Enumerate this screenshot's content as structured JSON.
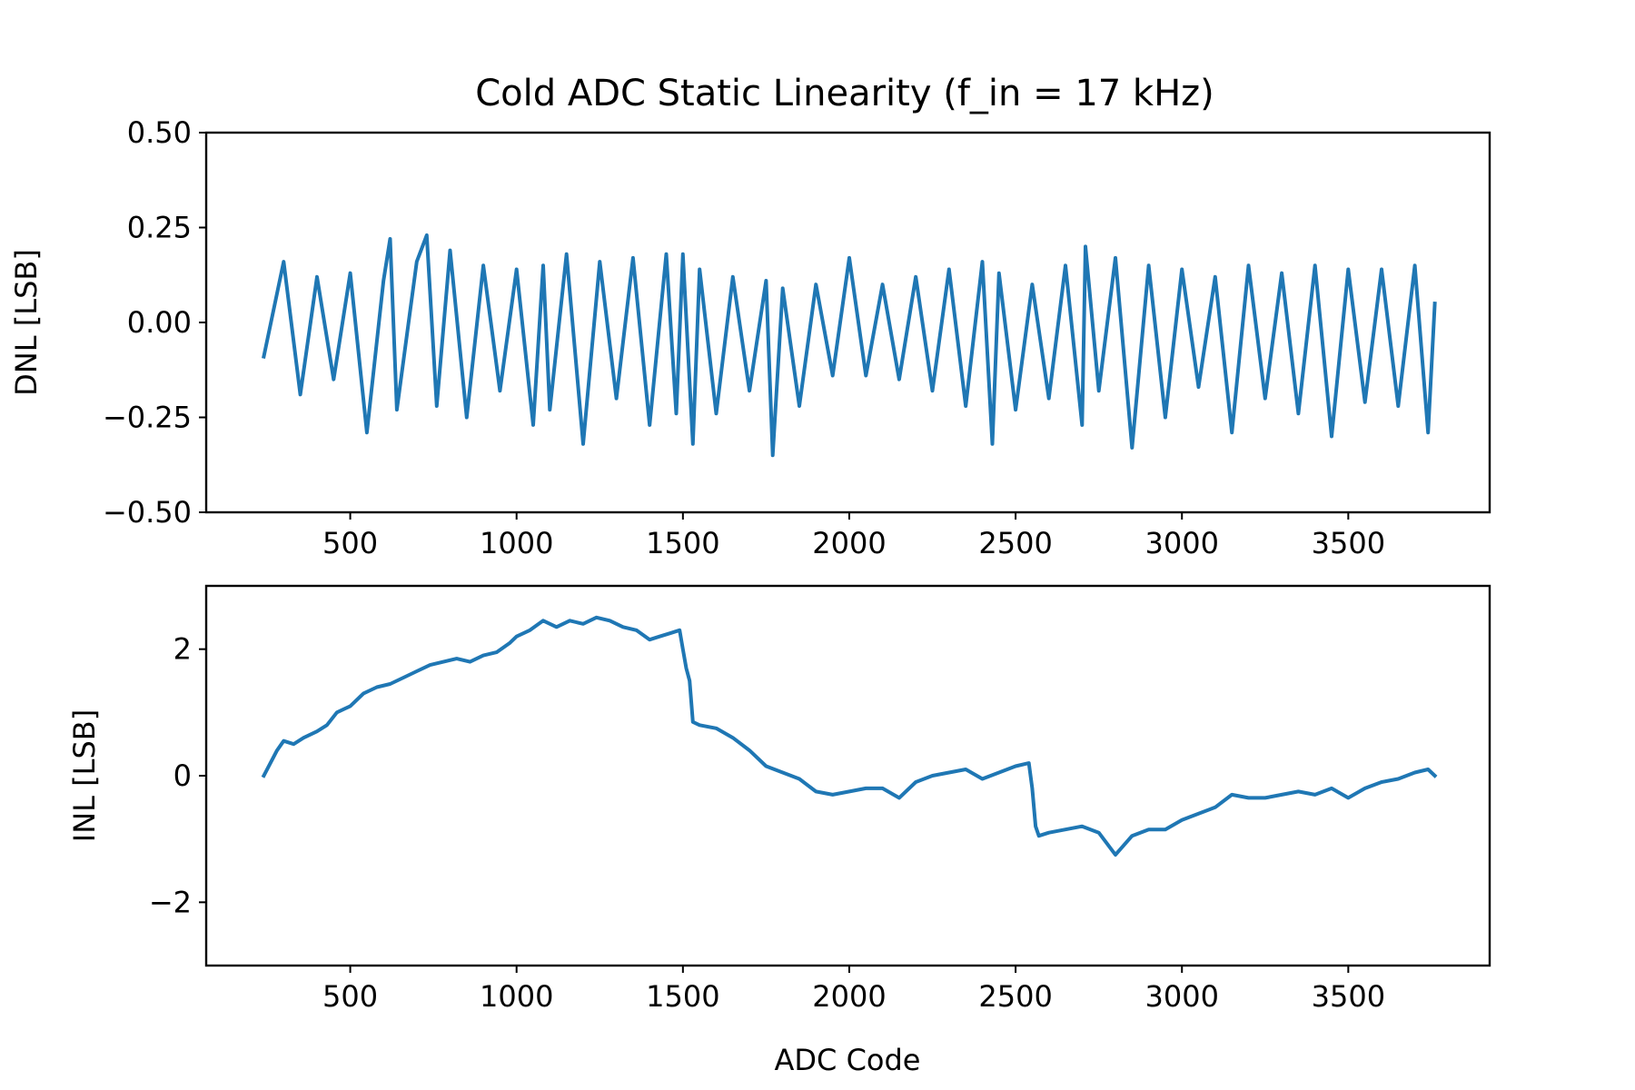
{
  "chart_data": {
    "title": "Cold ADC Static Linearity (f_in = 17 kHz)",
    "series_color": "#1f77b4",
    "subplots": [
      {
        "id": "dnl",
        "type": "line",
        "ylabel": "DNL [LSB]",
        "xlabel": "",
        "xlim": [
          67,
          3925
        ],
        "ylim": [
          -0.5,
          0.5
        ],
        "xticks": [
          500,
          1000,
          1500,
          2000,
          2500,
          3000,
          3500
        ],
        "xtick_labels": [
          "500",
          "1000",
          "1500",
          "2000",
          "2500",
          "3000",
          "3500"
        ],
        "yticks": [
          -0.5,
          -0.25,
          0.0,
          0.25,
          0.5
        ],
        "ytick_labels": [
          "−0.50",
          "−0.25",
          "0.00",
          "0.25",
          "0.50"
        ],
        "series": [
          {
            "x": [
              240,
              300,
              350,
              400,
              450,
              500,
              550,
              600,
              620,
              640,
              700,
              730,
              760,
              800,
              850,
              900,
              950,
              1000,
              1050,
              1080,
              1100,
              1150,
              1200,
              1250,
              1300,
              1350,
              1400,
              1450,
              1480,
              1500,
              1530,
              1550,
              1600,
              1650,
              1700,
              1750,
              1770,
              1800,
              1850,
              1900,
              1950,
              2000,
              2050,
              2100,
              2150,
              2200,
              2250,
              2300,
              2350,
              2400,
              2430,
              2450,
              2500,
              2550,
              2600,
              2650,
              2700,
              2710,
              2750,
              2800,
              2850,
              2900,
              2950,
              3000,
              3050,
              3100,
              3150,
              3200,
              3250,
              3300,
              3350,
              3400,
              3450,
              3500,
              3550,
              3600,
              3650,
              3700,
              3740,
              3760
            ],
            "y": [
              -0.09,
              0.16,
              -0.19,
              0.12,
              -0.15,
              0.13,
              -0.29,
              0.11,
              0.22,
              -0.23,
              0.16,
              0.23,
              -0.22,
              0.19,
              -0.25,
              0.15,
              -0.18,
              0.14,
              -0.27,
              0.15,
              -0.23,
              0.18,
              -0.32,
              0.16,
              -0.2,
              0.17,
              -0.27,
              0.18,
              -0.24,
              0.18,
              -0.32,
              0.14,
              -0.24,
              0.12,
              -0.18,
              0.11,
              -0.35,
              0.09,
              -0.22,
              0.1,
              -0.14,
              0.17,
              -0.14,
              0.1,
              -0.15,
              0.12,
              -0.18,
              0.14,
              -0.22,
              0.16,
              -0.32,
              0.13,
              -0.23,
              0.1,
              -0.2,
              0.15,
              -0.27,
              0.2,
              -0.18,
              0.17,
              -0.33,
              0.15,
              -0.25,
              0.14,
              -0.17,
              0.12,
              -0.29,
              0.15,
              -0.2,
              0.13,
              -0.24,
              0.15,
              -0.3,
              0.14,
              -0.21,
              0.14,
              -0.22,
              0.15,
              -0.29,
              0.05
            ]
          }
        ]
      },
      {
        "id": "inl",
        "type": "line",
        "ylabel": "INL [LSB]",
        "xlabel": "ADC Code",
        "xlim": [
          67,
          3925
        ],
        "ylim": [
          -3,
          3
        ],
        "xticks": [
          500,
          1000,
          1500,
          2000,
          2500,
          3000,
          3500
        ],
        "xtick_labels": [
          "500",
          "1000",
          "1500",
          "2000",
          "2500",
          "3000",
          "3500"
        ],
        "yticks": [
          -2,
          0,
          2
        ],
        "ytick_labels": [
          "−2",
          "0",
          "2"
        ],
        "series": [
          {
            "x": [
              240,
              260,
              280,
              300,
              330,
              360,
              400,
              430,
              460,
              500,
              540,
              580,
              620,
              660,
              700,
              740,
              780,
              820,
              860,
              900,
              940,
              980,
              1000,
              1040,
              1080,
              1120,
              1160,
              1200,
              1240,
              1280,
              1320,
              1360,
              1400,
              1430,
              1460,
              1490,
              1500,
              1510,
              1520,
              1530,
              1550,
              1600,
              1650,
              1700,
              1750,
              1800,
              1850,
              1900,
              1950,
              2000,
              2050,
              2100,
              2150,
              2200,
              2250,
              2300,
              2350,
              2400,
              2450,
              2500,
              2540,
              2550,
              2560,
              2570,
              2600,
              2650,
              2700,
              2750,
              2800,
              2850,
              2900,
              2950,
              3000,
              3050,
              3100,
              3150,
              3200,
              3250,
              3300,
              3350,
              3400,
              3450,
              3500,
              3550,
              3600,
              3650,
              3700,
              3740,
              3760
            ],
            "y": [
              0.0,
              0.2,
              0.4,
              0.55,
              0.5,
              0.6,
              0.7,
              0.8,
              1.0,
              1.1,
              1.3,
              1.4,
              1.45,
              1.55,
              1.65,
              1.75,
              1.8,
              1.85,
              1.8,
              1.9,
              1.95,
              2.1,
              2.2,
              2.3,
              2.45,
              2.35,
              2.45,
              2.4,
              2.5,
              2.45,
              2.35,
              2.3,
              2.15,
              2.2,
              2.25,
              2.3,
              2.0,
              1.7,
              1.5,
              0.85,
              0.8,
              0.75,
              0.6,
              0.4,
              0.15,
              0.05,
              -0.05,
              -0.25,
              -0.3,
              -0.25,
              -0.2,
              -0.2,
              -0.35,
              -0.1,
              0.0,
              0.05,
              0.1,
              -0.05,
              0.05,
              0.15,
              0.2,
              -0.2,
              -0.8,
              -0.95,
              -0.9,
              -0.85,
              -0.8,
              -0.9,
              -1.25,
              -0.95,
              -0.85,
              -0.85,
              -0.7,
              -0.6,
              -0.5,
              -0.3,
              -0.35,
              -0.35,
              -0.3,
              -0.25,
              -0.3,
              -0.2,
              -0.35,
              -0.2,
              -0.1,
              -0.05,
              0.05,
              0.1,
              0.0
            ]
          }
        ]
      }
    ]
  }
}
